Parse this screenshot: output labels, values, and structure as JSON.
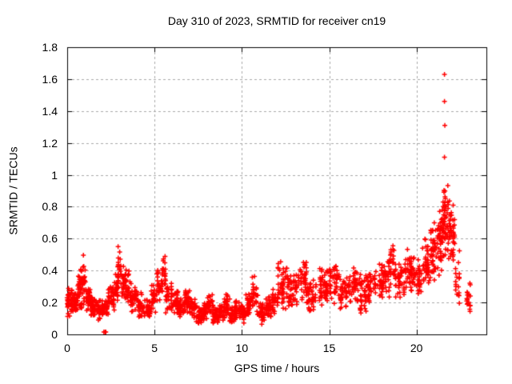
{
  "window": {
    "background": "#ffffff"
  },
  "chart_data": {
    "type": "scatter",
    "title": "Day 310 of 2023, SRMTID for receiver cn19",
    "xlabel": "GPS time / hours",
    "ylabel": "SRMTID / TECUs",
    "xlim": [
      0,
      24
    ],
    "ylim": [
      0,
      1.8
    ],
    "xticks": {
      "values": [
        0,
        5,
        10,
        15,
        20
      ],
      "labels": [
        "0",
        "5",
        "10",
        "15",
        "20"
      ]
    },
    "yticks": {
      "values": [
        0,
        0.2,
        0.4,
        0.6,
        0.8,
        1.0,
        1.2,
        1.4,
        1.6,
        1.8
      ],
      "labels": [
        "0",
        "0.2",
        "0.4",
        "0.6",
        "0.8",
        "1",
        "1.2",
        "1.4",
        "1.6",
        "1.8"
      ]
    },
    "grid": true,
    "grid_style": "dashed",
    "grid_color": "#a8a8a8",
    "axis_color": "#000000",
    "legend": "none",
    "marker": {
      "shape": "plus",
      "color": "#ff0000",
      "size": 7
    },
    "series_name": "SRMTID",
    "note": "dense 30s-cadence scatter approximated by envelope bins: [hour_start, hour_end, y_min, y_max, n_points]",
    "density_bins": [
      [
        0.0,
        0.3,
        0.1,
        0.32,
        40
      ],
      [
        0.3,
        0.6,
        0.12,
        0.28,
        34
      ],
      [
        0.6,
        0.85,
        0.15,
        0.42,
        34
      ],
      [
        0.85,
        1.05,
        0.18,
        0.52,
        26
      ],
      [
        1.05,
        1.35,
        0.14,
        0.32,
        34
      ],
      [
        1.35,
        1.7,
        0.1,
        0.26,
        36
      ],
      [
        1.7,
        2.05,
        0.08,
        0.24,
        36
      ],
      [
        2.05,
        2.35,
        0.1,
        0.22,
        28
      ],
      [
        2.35,
        2.7,
        0.13,
        0.32,
        34
      ],
      [
        2.7,
        2.95,
        0.18,
        0.4,
        24
      ],
      [
        2.9,
        3.1,
        0.25,
        0.61,
        20
      ],
      [
        3.05,
        3.35,
        0.2,
        0.46,
        30
      ],
      [
        3.35,
        3.65,
        0.18,
        0.42,
        30
      ],
      [
        3.65,
        4.0,
        0.12,
        0.32,
        34
      ],
      [
        4.0,
        4.4,
        0.09,
        0.27,
        36
      ],
      [
        4.4,
        4.8,
        0.08,
        0.24,
        36
      ],
      [
        4.8,
        5.15,
        0.13,
        0.33,
        34
      ],
      [
        5.15,
        5.45,
        0.18,
        0.44,
        26
      ],
      [
        5.45,
        5.65,
        0.24,
        0.52,
        18
      ],
      [
        5.65,
        6.0,
        0.13,
        0.36,
        32
      ],
      [
        6.0,
        6.4,
        0.1,
        0.28,
        36
      ],
      [
        6.4,
        6.7,
        0.1,
        0.24,
        30
      ],
      [
        6.7,
        7.0,
        0.12,
        0.31,
        30
      ],
      [
        7.0,
        7.35,
        0.09,
        0.25,
        32
      ],
      [
        7.35,
        7.7,
        0.06,
        0.18,
        32
      ],
      [
        7.7,
        8.0,
        0.07,
        0.22,
        30
      ],
      [
        8.0,
        8.35,
        0.1,
        0.27,
        32
      ],
      [
        8.35,
        8.7,
        0.06,
        0.18,
        32
      ],
      [
        8.7,
        9.0,
        0.07,
        0.2,
        30
      ],
      [
        9.0,
        9.3,
        0.1,
        0.26,
        30
      ],
      [
        9.3,
        9.6,
        0.06,
        0.18,
        30
      ],
      [
        9.6,
        9.9,
        0.08,
        0.22,
        30
      ],
      [
        9.9,
        10.2,
        0.06,
        0.2,
        30
      ],
      [
        10.2,
        10.55,
        0.1,
        0.28,
        30
      ],
      [
        10.55,
        10.9,
        0.12,
        0.38,
        28
      ],
      [
        10.9,
        11.3,
        0.05,
        0.21,
        34
      ],
      [
        11.3,
        11.7,
        0.08,
        0.25,
        34
      ],
      [
        11.7,
        12.05,
        0.1,
        0.3,
        32
      ],
      [
        12.05,
        12.6,
        0.15,
        0.47,
        44
      ],
      [
        12.6,
        13.2,
        0.15,
        0.4,
        46
      ],
      [
        13.2,
        13.7,
        0.18,
        0.48,
        38
      ],
      [
        13.7,
        14.3,
        0.12,
        0.35,
        44
      ],
      [
        14.3,
        15.0,
        0.17,
        0.43,
        50
      ],
      [
        15.0,
        15.6,
        0.18,
        0.45,
        44
      ],
      [
        15.6,
        16.1,
        0.14,
        0.38,
        38
      ],
      [
        16.1,
        16.6,
        0.18,
        0.43,
        38
      ],
      [
        16.6,
        17.1,
        0.12,
        0.38,
        38
      ],
      [
        17.1,
        17.6,
        0.18,
        0.42,
        38
      ],
      [
        17.6,
        18.2,
        0.2,
        0.47,
        44
      ],
      [
        18.2,
        18.55,
        0.22,
        0.52,
        28
      ],
      [
        18.5,
        18.75,
        0.3,
        0.63,
        18
      ],
      [
        18.75,
        19.3,
        0.2,
        0.46,
        40
      ],
      [
        19.3,
        19.7,
        0.25,
        0.57,
        34
      ],
      [
        19.7,
        20.3,
        0.24,
        0.5,
        44
      ],
      [
        20.3,
        20.7,
        0.28,
        0.62,
        38
      ],
      [
        20.7,
        21.1,
        0.3,
        0.75,
        42
      ],
      [
        21.1,
        21.45,
        0.35,
        0.8,
        40
      ],
      [
        21.45,
        21.8,
        0.42,
        0.97,
        55
      ],
      [
        21.8,
        22.2,
        0.4,
        0.88,
        48
      ],
      [
        22.2,
        22.55,
        0.15,
        0.55,
        16
      ],
      [
        22.85,
        23.1,
        0.12,
        0.33,
        18
      ]
    ],
    "outliers": [
      [
        21.6,
        1.63
      ],
      [
        21.6,
        1.46
      ],
      [
        21.62,
        1.31
      ],
      [
        21.6,
        1.11
      ],
      [
        22.4,
        0.45
      ],
      [
        22.45,
        0.38
      ],
      [
        2.1,
        0.015
      ],
      [
        2.17,
        0.015
      ],
      [
        2.21,
        0.015
      ]
    ],
    "seed": 310
  }
}
